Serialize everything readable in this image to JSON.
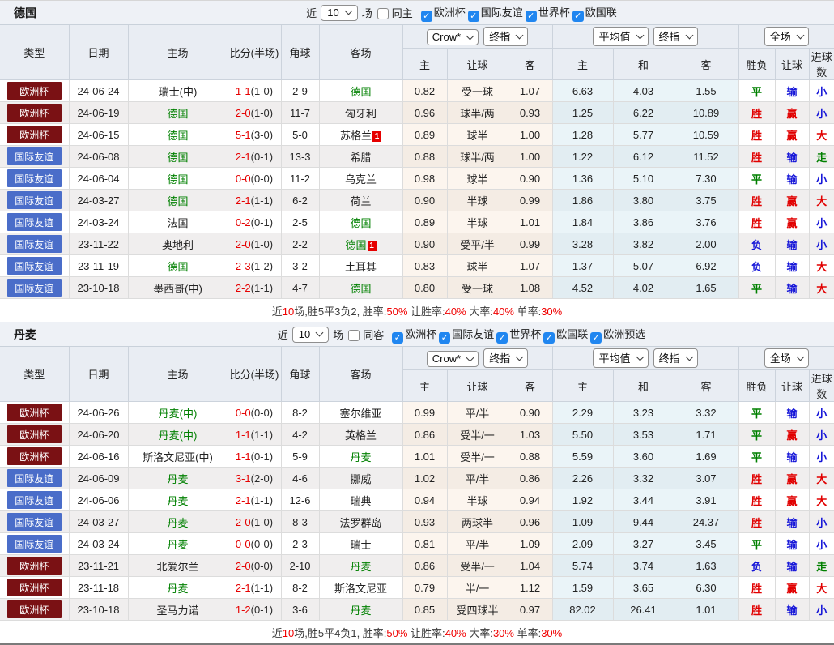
{
  "palette": {
    "result_colors": {
      "胜": "#e10000",
      "平": "#008000",
      "负": "#1414d8",
      "赢": "#e10000",
      "输": "#1414d8",
      "走": "#008000",
      "大": "#e10000",
      "小": "#1414d8"
    },
    "type_colors": {
      "欧洲杯": "#7a1114",
      "国际友谊": "#4a6dc9"
    },
    "team_green": "#008000",
    "score_red": "#e60000",
    "checkbox_blue": "#2086f0",
    "summary_red": "#f00000"
  },
  "header": {
    "fixed_columns": [
      "类型",
      "日期",
      "主场",
      "比分(半场)",
      "角球",
      "客场"
    ],
    "crow_select": "Crow*",
    "final_select": "终指",
    "avg_select": "平均值",
    "final2_select": "终指",
    "full_select": "全场",
    "crow_sub": [
      "主",
      "让球",
      "客"
    ],
    "avg_sub": [
      "主",
      "和",
      "客"
    ],
    "result_sub": [
      "胜负",
      "让球",
      "进球数"
    ],
    "check_glyph": "✓"
  },
  "sections": [
    {
      "team": "德国",
      "filter": {
        "near": "近",
        "count": "10",
        "unit": "场",
        "same_label": "同主",
        "same_checked": false,
        "competitions": [
          "欧洲杯",
          "国际友谊",
          "世界杯",
          "欧国联"
        ]
      },
      "rows": [
        {
          "type": "欧洲杯",
          "date": "24-06-24",
          "home": "瑞士(中)",
          "home_green": false,
          "score": "1-1",
          "half": "(1-0)",
          "corner": "2-9",
          "away": "德国",
          "away_green": true,
          "away_badge": "",
          "o1": "0.82",
          "hcap": "受一球",
          "o2": "1.07",
          "a1": "6.63",
          "a2": "4.03",
          "a3": "1.55",
          "r1": "平",
          "r2": "输",
          "r3": "小"
        },
        {
          "type": "欧洲杯",
          "date": "24-06-19",
          "home": "德国",
          "home_green": true,
          "score": "2-0",
          "half": "(1-0)",
          "corner": "11-7",
          "away": "匈牙利",
          "away_green": false,
          "away_badge": "",
          "o1": "0.96",
          "hcap": "球半/两",
          "o2": "0.93",
          "a1": "1.25",
          "a2": "6.22",
          "a3": "10.89",
          "r1": "胜",
          "r2": "赢",
          "r3": "小"
        },
        {
          "type": "欧洲杯",
          "date": "24-06-15",
          "home": "德国",
          "home_green": true,
          "score": "5-1",
          "half": "(3-0)",
          "corner": "5-0",
          "away": "苏格兰",
          "away_green": false,
          "away_badge": "1",
          "o1": "0.89",
          "hcap": "球半",
          "o2": "1.00",
          "a1": "1.28",
          "a2": "5.77",
          "a3": "10.59",
          "r1": "胜",
          "r2": "赢",
          "r3": "大"
        },
        {
          "type": "国际友谊",
          "date": "24-06-08",
          "home": "德国",
          "home_green": true,
          "score": "2-1",
          "half": "(0-1)",
          "corner": "13-3",
          "away": "希腊",
          "away_green": false,
          "away_badge": "",
          "o1": "0.88",
          "hcap": "球半/两",
          "o2": "1.00",
          "a1": "1.22",
          "a2": "6.12",
          "a3": "11.52",
          "r1": "胜",
          "r2": "输",
          "r3": "走"
        },
        {
          "type": "国际友谊",
          "date": "24-06-04",
          "home": "德国",
          "home_green": true,
          "score": "0-0",
          "half": "(0-0)",
          "corner": "11-2",
          "away": "乌克兰",
          "away_green": false,
          "away_badge": "",
          "o1": "0.98",
          "hcap": "球半",
          "o2": "0.90",
          "a1": "1.36",
          "a2": "5.10",
          "a3": "7.30",
          "r1": "平",
          "r2": "输",
          "r3": "小"
        },
        {
          "type": "国际友谊",
          "date": "24-03-27",
          "home": "德国",
          "home_green": true,
          "score": "2-1",
          "half": "(1-1)",
          "corner": "6-2",
          "away": "荷兰",
          "away_green": false,
          "away_badge": "",
          "o1": "0.90",
          "hcap": "半球",
          "o2": "0.99",
          "a1": "1.86",
          "a2": "3.80",
          "a3": "3.75",
          "r1": "胜",
          "r2": "赢",
          "r3": "大"
        },
        {
          "type": "国际友谊",
          "date": "24-03-24",
          "home": "法国",
          "home_green": false,
          "score": "0-2",
          "half": "(0-1)",
          "corner": "2-5",
          "away": "德国",
          "away_green": true,
          "away_badge": "",
          "o1": "0.89",
          "hcap": "半球",
          "o2": "1.01",
          "a1": "1.84",
          "a2": "3.86",
          "a3": "3.76",
          "r1": "胜",
          "r2": "赢",
          "r3": "小"
        },
        {
          "type": "国际友谊",
          "date": "23-11-22",
          "home": "奥地利",
          "home_green": false,
          "score": "2-0",
          "half": "(1-0)",
          "corner": "2-2",
          "away": "德国",
          "away_green": true,
          "away_badge": "1",
          "o1": "0.90",
          "hcap": "受平/半",
          "o2": "0.99",
          "a1": "3.28",
          "a2": "3.82",
          "a3": "2.00",
          "r1": "负",
          "r2": "输",
          "r3": "小"
        },
        {
          "type": "国际友谊",
          "date": "23-11-19",
          "home": "德国",
          "home_green": true,
          "score": "2-3",
          "half": "(1-2)",
          "corner": "3-2",
          "away": "土耳其",
          "away_green": false,
          "away_badge": "",
          "o1": "0.83",
          "hcap": "球半",
          "o2": "1.07",
          "a1": "1.37",
          "a2": "5.07",
          "a3": "6.92",
          "r1": "负",
          "r2": "输",
          "r3": "大"
        },
        {
          "type": "国际友谊",
          "date": "23-10-18",
          "home": "墨西哥(中)",
          "home_green": false,
          "score": "2-2",
          "half": "(1-1)",
          "corner": "4-7",
          "away": "德国",
          "away_green": true,
          "away_badge": "",
          "o1": "0.80",
          "hcap": "受一球",
          "o2": "1.08",
          "a1": "4.52",
          "a2": "4.02",
          "a3": "1.65",
          "r1": "平",
          "r2": "输",
          "r3": "大"
        }
      ],
      "summary": [
        {
          "t": "近"
        },
        {
          "t": "10",
          "red": true
        },
        {
          "t": "场,胜5平3负2, 胜率:"
        },
        {
          "t": "50%",
          "red": true
        },
        {
          "t": " 让胜率:"
        },
        {
          "t": "40%",
          "red": true
        },
        {
          "t": " 大率:"
        },
        {
          "t": "40%",
          "red": true
        },
        {
          "t": " 单率:"
        },
        {
          "t": "30%",
          "red": true
        }
      ]
    },
    {
      "team": "丹麦",
      "filter": {
        "near": "近",
        "count": "10",
        "unit": "场",
        "same_label": "同客",
        "same_checked": false,
        "competitions": [
          "欧洲杯",
          "国际友谊",
          "世界杯",
          "欧国联",
          "欧洲预选"
        ]
      },
      "rows": [
        {
          "type": "欧洲杯",
          "date": "24-06-26",
          "home": "丹麦(中)",
          "home_green": true,
          "score": "0-0",
          "half": "(0-0)",
          "corner": "8-2",
          "away": "塞尔维亚",
          "away_green": false,
          "away_badge": "",
          "o1": "0.99",
          "hcap": "平/半",
          "o2": "0.90",
          "a1": "2.29",
          "a2": "3.23",
          "a3": "3.32",
          "r1": "平",
          "r2": "输",
          "r3": "小"
        },
        {
          "type": "欧洲杯",
          "date": "24-06-20",
          "home": "丹麦(中)",
          "home_green": true,
          "score": "1-1",
          "half": "(1-1)",
          "corner": "4-2",
          "away": "英格兰",
          "away_green": false,
          "away_badge": "",
          "o1": "0.86",
          "hcap": "受半/一",
          "o2": "1.03",
          "a1": "5.50",
          "a2": "3.53",
          "a3": "1.71",
          "r1": "平",
          "r2": "赢",
          "r3": "小"
        },
        {
          "type": "欧洲杯",
          "date": "24-06-16",
          "home": "斯洛文尼亚(中)",
          "home_green": false,
          "score": "1-1",
          "half": "(0-1)",
          "corner": "5-9",
          "away": "丹麦",
          "away_green": true,
          "away_badge": "",
          "o1": "1.01",
          "hcap": "受半/一",
          "o2": "0.88",
          "a1": "5.59",
          "a2": "3.60",
          "a3": "1.69",
          "r1": "平",
          "r2": "输",
          "r3": "小"
        },
        {
          "type": "国际友谊",
          "date": "24-06-09",
          "home": "丹麦",
          "home_green": true,
          "score": "3-1",
          "half": "(2-0)",
          "corner": "4-6",
          "away": "挪威",
          "away_green": false,
          "away_badge": "",
          "o1": "1.02",
          "hcap": "平/半",
          "o2": "0.86",
          "a1": "2.26",
          "a2": "3.32",
          "a3": "3.07",
          "r1": "胜",
          "r2": "赢",
          "r3": "大"
        },
        {
          "type": "国际友谊",
          "date": "24-06-06",
          "home": "丹麦",
          "home_green": true,
          "score": "2-1",
          "half": "(1-1)",
          "corner": "12-6",
          "away": "瑞典",
          "away_green": false,
          "away_badge": "",
          "o1": "0.94",
          "hcap": "半球",
          "o2": "0.94",
          "a1": "1.92",
          "a2": "3.44",
          "a3": "3.91",
          "r1": "胜",
          "r2": "赢",
          "r3": "大"
        },
        {
          "type": "国际友谊",
          "date": "24-03-27",
          "home": "丹麦",
          "home_green": true,
          "score": "2-0",
          "half": "(1-0)",
          "corner": "8-3",
          "away": "法罗群岛",
          "away_green": false,
          "away_badge": "",
          "o1": "0.93",
          "hcap": "两球半",
          "o2": "0.96",
          "a1": "1.09",
          "a2": "9.44",
          "a3": "24.37",
          "r1": "胜",
          "r2": "输",
          "r3": "小"
        },
        {
          "type": "国际友谊",
          "date": "24-03-24",
          "home": "丹麦",
          "home_green": true,
          "score": "0-0",
          "half": "(0-0)",
          "corner": "2-3",
          "away": "瑞士",
          "away_green": false,
          "away_badge": "",
          "o1": "0.81",
          "hcap": "平/半",
          "o2": "1.09",
          "a1": "2.09",
          "a2": "3.27",
          "a3": "3.45",
          "r1": "平",
          "r2": "输",
          "r3": "小"
        },
        {
          "type": "欧洲杯",
          "date": "23-11-21",
          "home": "北爱尔兰",
          "home_green": false,
          "score": "2-0",
          "half": "(0-0)",
          "corner": "2-10",
          "away": "丹麦",
          "away_green": true,
          "away_badge": "",
          "o1": "0.86",
          "hcap": "受半/一",
          "o2": "1.04",
          "a1": "5.74",
          "a2": "3.74",
          "a3": "1.63",
          "r1": "负",
          "r2": "输",
          "r3": "走"
        },
        {
          "type": "欧洲杯",
          "date": "23-11-18",
          "home": "丹麦",
          "home_green": true,
          "score": "2-1",
          "half": "(1-1)",
          "corner": "8-2",
          "away": "斯洛文尼亚",
          "away_green": false,
          "away_badge": "",
          "o1": "0.79",
          "hcap": "半/一",
          "o2": "1.12",
          "a1": "1.59",
          "a2": "3.65",
          "a3": "6.30",
          "r1": "胜",
          "r2": "赢",
          "r3": "大"
        },
        {
          "type": "欧洲杯",
          "date": "23-10-18",
          "home": "圣马力诺",
          "home_green": false,
          "score": "1-2",
          "half": "(0-1)",
          "corner": "3-6",
          "away": "丹麦",
          "away_green": true,
          "away_badge": "",
          "o1": "0.85",
          "hcap": "受四球半",
          "o2": "0.97",
          "a1": "82.02",
          "a2": "26.41",
          "a3": "1.01",
          "r1": "胜",
          "r2": "输",
          "r3": "小"
        }
      ],
      "summary": [
        {
          "t": "近"
        },
        {
          "t": "10",
          "red": true
        },
        {
          "t": "场,胜5平4负1, 胜率:"
        },
        {
          "t": "50%",
          "red": true
        },
        {
          "t": " 让胜率:"
        },
        {
          "t": "40%",
          "red": true
        },
        {
          "t": " 大率:"
        },
        {
          "t": "30%",
          "red": true
        },
        {
          "t": " 单率:"
        },
        {
          "t": "30%",
          "red": true
        }
      ]
    }
  ]
}
